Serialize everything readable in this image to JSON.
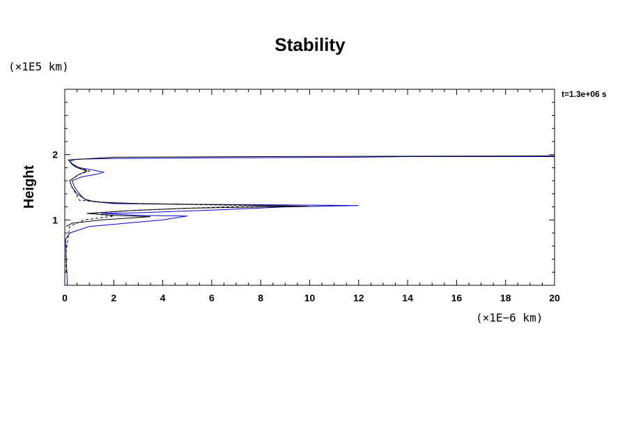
{
  "chart_data": {
    "type": "line",
    "title": "Stability",
    "ylabel": "Height",
    "xlabel": "",
    "x_unit_label": "(×1E−6 km)",
    "y_unit_label": "(×1E5 km)",
    "time_label": "t=1.3e+06 s",
    "xlim": [
      0,
      20
    ],
    "ylim": [
      0,
      3
    ],
    "x_ticks": [
      0,
      2,
      4,
      6,
      8,
      10,
      12,
      14,
      16,
      18,
      20
    ],
    "y_ticks": [
      1,
      2
    ],
    "grid": false,
    "series": [
      {
        "style": "solid",
        "color": "#0000cc",
        "points": [
          [
            0.1,
            0.0
          ],
          [
            0.1,
            0.05
          ],
          [
            0.05,
            0.5
          ],
          [
            0.03,
            0.7
          ],
          [
            0.2,
            0.8
          ],
          [
            1.0,
            0.9
          ],
          [
            2.5,
            0.95
          ],
          [
            4.0,
            1.0
          ],
          [
            5.0,
            1.06
          ],
          [
            3.0,
            1.07
          ],
          [
            1.5,
            1.1
          ],
          [
            3.0,
            1.11
          ],
          [
            6.0,
            1.15
          ],
          [
            9.0,
            1.2
          ],
          [
            12.0,
            1.22
          ],
          [
            9.0,
            1.23
          ],
          [
            5.0,
            1.24
          ],
          [
            2.0,
            1.25
          ],
          [
            1.2,
            1.28
          ],
          [
            0.8,
            1.32
          ],
          [
            0.6,
            1.4
          ],
          [
            0.4,
            1.5
          ],
          [
            0.3,
            1.6
          ],
          [
            0.7,
            1.66
          ],
          [
            1.3,
            1.7
          ],
          [
            1.6,
            1.73
          ],
          [
            1.2,
            1.76
          ],
          [
            0.6,
            1.8
          ],
          [
            0.3,
            1.86
          ],
          [
            0.2,
            1.9
          ],
          [
            0.5,
            1.93
          ],
          [
            2.0,
            1.94
          ],
          [
            6.0,
            1.95
          ],
          [
            12.0,
            1.96
          ],
          [
            14.0,
            1.97
          ],
          [
            20.0,
            1.97
          ]
        ]
      },
      {
        "style": "solid",
        "color": "#000000",
        "points": [
          [
            0.05,
            0.9
          ],
          [
            0.3,
            0.95
          ],
          [
            1.5,
            1.0
          ],
          [
            3.5,
            1.05
          ],
          [
            2.0,
            1.07
          ],
          [
            0.9,
            1.1
          ],
          [
            2.5,
            1.14
          ],
          [
            5.0,
            1.18
          ],
          [
            8.0,
            1.2
          ],
          [
            10.0,
            1.21
          ],
          [
            7.0,
            1.23
          ],
          [
            3.0,
            1.25
          ],
          [
            1.5,
            1.27
          ],
          [
            0.9,
            1.3
          ],
          [
            0.5,
            1.4
          ],
          [
            0.3,
            1.5
          ],
          [
            0.2,
            1.6
          ],
          [
            0.5,
            1.68
          ],
          [
            0.9,
            1.75
          ],
          [
            0.5,
            1.8
          ],
          [
            0.3,
            1.85
          ],
          [
            0.15,
            1.92
          ],
          [
            2.0,
            1.96
          ],
          [
            8.0,
            1.97
          ],
          [
            20.0,
            1.98
          ]
        ]
      },
      {
        "style": "dashed",
        "color": "#000000",
        "points": [
          [
            0.05,
            0.2
          ],
          [
            0.05,
            0.5
          ],
          [
            0.2,
            0.9
          ],
          [
            0.8,
            1.0
          ],
          [
            2.0,
            1.06
          ],
          [
            1.0,
            1.1
          ],
          [
            3.0,
            1.15
          ],
          [
            6.5,
            1.2
          ],
          [
            9.5,
            1.21
          ],
          [
            6.0,
            1.23
          ],
          [
            2.0,
            1.26
          ],
          [
            0.6,
            1.3
          ],
          [
            0.3,
            1.5
          ],
          [
            0.2,
            1.6
          ],
          [
            0.6,
            1.7
          ],
          [
            1.0,
            1.75
          ],
          [
            0.4,
            1.82
          ],
          [
            0.2,
            1.9
          ]
        ]
      }
    ]
  }
}
